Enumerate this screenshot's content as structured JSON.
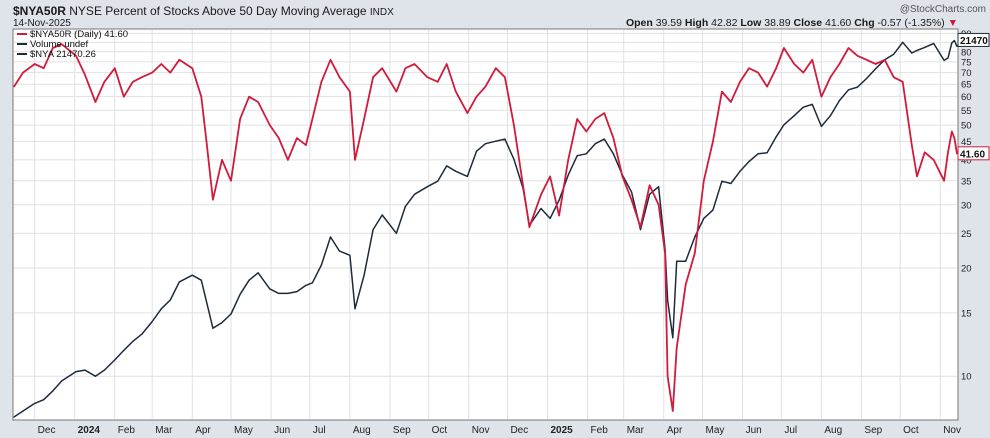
{
  "header": {
    "symbol": "$NYA50R",
    "description": "NYSE Percent of Stocks Above 50 Day Moving Average",
    "exchange": "INDX",
    "date": "14-Nov-2025",
    "watermark": "@StockCharts.com",
    "open_label": "Open",
    "open_value": "39.59",
    "high_label": "High",
    "high_value": "42.82",
    "low_label": "Low",
    "low_value": "38.89",
    "close_label": "Close",
    "close_value": "41.60",
    "chg_label": "Chg",
    "chg_value": "-0.57 (-1.35%)",
    "chg_arrow": "▼"
  },
  "legend": [
    {
      "text": "$NYA50R (Daily) 41.60",
      "color": "#d01c3c"
    },
    {
      "text": "Volume undef",
      "color": "#1e2b3c"
    },
    {
      "text": "$NYA 21470.26",
      "color": "#1e2b3c"
    }
  ],
  "last_labels": {
    "nya": "21470",
    "nya50r": "41.60"
  },
  "colors": {
    "nya50r": "#d01c3c",
    "nya": "#1e2b3c",
    "background": "#ffffff",
    "grid": "#e1e1e1"
  },
  "chart_data": {
    "type": "line",
    "y_scale": "log",
    "grid": true,
    "legend_position": "top-left",
    "y_ticks": [
      10,
      15,
      20,
      25,
      30,
      35,
      40,
      45,
      50,
      55,
      60,
      65,
      70,
      75,
      80,
      85,
      90
    ],
    "x_tick_labels": [
      {
        "label": "Dec",
        "date": "2023-12-01"
      },
      {
        "label": "2024",
        "date": "2024-01-01",
        "bold": true
      },
      {
        "label": "Feb",
        "date": "2024-02-01"
      },
      {
        "label": "Mar",
        "date": "2024-03-01"
      },
      {
        "label": "Apr",
        "date": "2024-04-01"
      },
      {
        "label": "May",
        "date": "2024-05-01"
      },
      {
        "label": "Jun",
        "date": "2024-06-01"
      },
      {
        "label": "Jul",
        "date": "2024-07-01"
      },
      {
        "label": "Aug",
        "date": "2024-08-01"
      },
      {
        "label": "Sep",
        "date": "2024-09-01"
      },
      {
        "label": "Oct",
        "date": "2024-10-01"
      },
      {
        "label": "Nov",
        "date": "2024-11-01"
      },
      {
        "label": "Dec",
        "date": "2024-12-01"
      },
      {
        "label": "2025",
        "date": "2025-01-01",
        "bold": true
      },
      {
        "label": "Feb",
        "date": "2025-02-01"
      },
      {
        "label": "Mar",
        "date": "2025-03-01"
      },
      {
        "label": "Apr",
        "date": "2025-04-01"
      },
      {
        "label": "May",
        "date": "2025-05-01"
      },
      {
        "label": "Jun",
        "date": "2025-06-01"
      },
      {
        "label": "Jul",
        "date": "2025-07-01"
      },
      {
        "label": "Aug",
        "date": "2025-08-01"
      },
      {
        "label": "Sep",
        "date": "2025-09-01"
      },
      {
        "label": "Oct",
        "date": "2025-10-01"
      },
      {
        "label": "Nov",
        "date": "2025-11-01"
      }
    ],
    "x_range": [
      "2023-11-15",
      "2025-11-14"
    ],
    "y_range": [
      7.6,
      92
    ],
    "series": [
      {
        "name": "$NYA50R",
        "points": [
          [
            "2023-11-15",
            64
          ],
          [
            "2023-11-22",
            70
          ],
          [
            "2023-12-01",
            74
          ],
          [
            "2023-12-08",
            72
          ],
          [
            "2023-12-15",
            82
          ],
          [
            "2023-12-22",
            84
          ],
          [
            "2024-01-02",
            78
          ],
          [
            "2024-01-09",
            69
          ],
          [
            "2024-01-17",
            58
          ],
          [
            "2024-01-24",
            66
          ],
          [
            "2024-02-01",
            72
          ],
          [
            "2024-02-08",
            60
          ],
          [
            "2024-02-15",
            66
          ],
          [
            "2024-02-22",
            68
          ],
          [
            "2024-03-01",
            70
          ],
          [
            "2024-03-08",
            74
          ],
          [
            "2024-03-15",
            70
          ],
          [
            "2024-03-22",
            76
          ],
          [
            "2024-04-01",
            72
          ],
          [
            "2024-04-08",
            60
          ],
          [
            "2024-04-12",
            45
          ],
          [
            "2024-04-17",
            31
          ],
          [
            "2024-04-24",
            40
          ],
          [
            "2024-05-01",
            35
          ],
          [
            "2024-05-08",
            52
          ],
          [
            "2024-05-15",
            60
          ],
          [
            "2024-05-22",
            58
          ],
          [
            "2024-05-31",
            50
          ],
          [
            "2024-06-07",
            46
          ],
          [
            "2024-06-14",
            40
          ],
          [
            "2024-06-21",
            46
          ],
          [
            "2024-06-28",
            44
          ],
          [
            "2024-07-03",
            52
          ],
          [
            "2024-07-10",
            66
          ],
          [
            "2024-07-17",
            76
          ],
          [
            "2024-07-24",
            68
          ],
          [
            "2024-08-01",
            62
          ],
          [
            "2024-08-05",
            40
          ],
          [
            "2024-08-12",
            52
          ],
          [
            "2024-08-19",
            68
          ],
          [
            "2024-08-26",
            72
          ],
          [
            "2024-09-06",
            62
          ],
          [
            "2024-09-13",
            72
          ],
          [
            "2024-09-20",
            74
          ],
          [
            "2024-09-30",
            68
          ],
          [
            "2024-10-08",
            66
          ],
          [
            "2024-10-15",
            74
          ],
          [
            "2024-10-22",
            62
          ],
          [
            "2024-10-31",
            54
          ],
          [
            "2024-11-07",
            60
          ],
          [
            "2024-11-14",
            64
          ],
          [
            "2024-11-22",
            72
          ],
          [
            "2024-11-29",
            68
          ],
          [
            "2024-12-06",
            50
          ],
          [
            "2024-12-13",
            34
          ],
          [
            "2024-12-18",
            26
          ],
          [
            "2024-12-27",
            32
          ],
          [
            "2025-01-03",
            36
          ],
          [
            "2025-01-10",
            28
          ],
          [
            "2025-01-17",
            40
          ],
          [
            "2025-01-24",
            52
          ],
          [
            "2025-01-31",
            48
          ],
          [
            "2025-02-07",
            52
          ],
          [
            "2025-02-14",
            54
          ],
          [
            "2025-02-21",
            46
          ],
          [
            "2025-02-28",
            36
          ],
          [
            "2025-03-07",
            31
          ],
          [
            "2025-03-14",
            26
          ],
          [
            "2025-03-21",
            34
          ],
          [
            "2025-03-28",
            30
          ],
          [
            "2025-04-02",
            22
          ],
          [
            "2025-04-04",
            10
          ],
          [
            "2025-04-08",
            8
          ],
          [
            "2025-04-11",
            12
          ],
          [
            "2025-04-18",
            18
          ],
          [
            "2025-04-25",
            22
          ],
          [
            "2025-05-02",
            35
          ],
          [
            "2025-05-09",
            45
          ],
          [
            "2025-05-16",
            62
          ],
          [
            "2025-05-23",
            58
          ],
          [
            "2025-05-30",
            66
          ],
          [
            "2025-06-06",
            72
          ],
          [
            "2025-06-13",
            70
          ],
          [
            "2025-06-20",
            64
          ],
          [
            "2025-06-27",
            72
          ],
          [
            "2025-07-03",
            82
          ],
          [
            "2025-07-11",
            74
          ],
          [
            "2025-07-18",
            70
          ],
          [
            "2025-07-25",
            76
          ],
          [
            "2025-08-01",
            60
          ],
          [
            "2025-08-08",
            68
          ],
          [
            "2025-08-15",
            74
          ],
          [
            "2025-08-22",
            82
          ],
          [
            "2025-08-29",
            78
          ],
          [
            "2025-09-05",
            76
          ],
          [
            "2025-09-12",
            74
          ],
          [
            "2025-09-19",
            76
          ],
          [
            "2025-09-26",
            68
          ],
          [
            "2025-10-03",
            66
          ],
          [
            "2025-10-10",
            44
          ],
          [
            "2025-10-14",
            36
          ],
          [
            "2025-10-20",
            42
          ],
          [
            "2025-10-27",
            40
          ],
          [
            "2025-11-04",
            35
          ],
          [
            "2025-11-07",
            42
          ],
          [
            "2025-11-10",
            48
          ],
          [
            "2025-11-12",
            46
          ],
          [
            "2025-11-14",
            41.6
          ]
        ]
      },
      {
        "name": "$NYA",
        "points": [
          [
            "2023-11-15",
            7.7
          ],
          [
            "2023-11-22",
            8.0
          ],
          [
            "2023-12-01",
            8.4
          ],
          [
            "2023-12-08",
            8.6
          ],
          [
            "2023-12-15",
            9.1
          ],
          [
            "2023-12-22",
            9.7
          ],
          [
            "2024-01-02",
            10.3
          ],
          [
            "2024-01-09",
            10.4
          ],
          [
            "2024-01-17",
            10.0
          ],
          [
            "2024-01-24",
            10.4
          ],
          [
            "2024-02-01",
            11.1
          ],
          [
            "2024-02-08",
            11.8
          ],
          [
            "2024-02-15",
            12.5
          ],
          [
            "2024-02-22",
            13.1
          ],
          [
            "2024-03-01",
            14.2
          ],
          [
            "2024-03-08",
            15.4
          ],
          [
            "2024-03-15",
            16.3
          ],
          [
            "2024-03-22",
            18.3
          ],
          [
            "2024-04-01",
            19.1
          ],
          [
            "2024-04-08",
            18.5
          ],
          [
            "2024-04-17",
            13.6
          ],
          [
            "2024-04-24",
            14.1
          ],
          [
            "2024-05-01",
            14.9
          ],
          [
            "2024-05-08",
            16.9
          ],
          [
            "2024-05-15",
            18.5
          ],
          [
            "2024-05-22",
            19.4
          ],
          [
            "2024-05-31",
            17.5
          ],
          [
            "2024-06-07",
            17.0
          ],
          [
            "2024-06-14",
            17.0
          ],
          [
            "2024-06-21",
            17.2
          ],
          [
            "2024-06-28",
            17.9
          ],
          [
            "2024-07-03",
            18.2
          ],
          [
            "2024-07-10",
            20.4
          ],
          [
            "2024-07-17",
            24.4
          ],
          [
            "2024-07-24",
            22.3
          ],
          [
            "2024-08-01",
            21.7
          ],
          [
            "2024-08-05",
            15.4
          ],
          [
            "2024-08-12",
            19.1
          ],
          [
            "2024-08-19",
            25.6
          ],
          [
            "2024-08-26",
            28.1
          ],
          [
            "2024-09-06",
            25.0
          ],
          [
            "2024-09-13",
            29.7
          ],
          [
            "2024-09-20",
            32.1
          ],
          [
            "2024-09-30",
            33.7
          ],
          [
            "2024-10-08",
            34.9
          ],
          [
            "2024-10-15",
            38.5
          ],
          [
            "2024-10-22",
            37.2
          ],
          [
            "2024-10-31",
            36.0
          ],
          [
            "2024-11-07",
            42.3
          ],
          [
            "2024-11-14",
            44.4
          ],
          [
            "2024-11-22",
            45.1
          ],
          [
            "2024-11-29",
            45.7
          ],
          [
            "2024-12-06",
            40.2
          ],
          [
            "2024-12-13",
            33.4
          ],
          [
            "2024-12-18",
            26.3
          ],
          [
            "2024-12-27",
            29.3
          ],
          [
            "2025-01-03",
            27.5
          ],
          [
            "2025-01-10",
            30.9
          ],
          [
            "2025-01-17",
            36.3
          ],
          [
            "2025-01-24",
            41.1
          ],
          [
            "2025-01-31",
            41.6
          ],
          [
            "2025-02-07",
            44.4
          ],
          [
            "2025-02-14",
            45.7
          ],
          [
            "2025-02-21",
            41.6
          ],
          [
            "2025-02-28",
            36.3
          ],
          [
            "2025-03-07",
            32.6
          ],
          [
            "2025-03-14",
            25.6
          ],
          [
            "2025-03-21",
            32.1
          ],
          [
            "2025-03-28",
            33.7
          ],
          [
            "2025-04-02",
            22.5
          ],
          [
            "2025-04-04",
            16.3
          ],
          [
            "2025-04-08",
            12.8
          ],
          [
            "2025-04-11",
            20.9
          ],
          [
            "2025-04-18",
            20.9
          ],
          [
            "2025-04-25",
            24.4
          ],
          [
            "2025-05-02",
            27.5
          ],
          [
            "2025-05-09",
            29.0
          ],
          [
            "2025-05-16",
            34.9
          ],
          [
            "2025-05-23",
            34.4
          ],
          [
            "2025-05-30",
            37.2
          ],
          [
            "2025-06-06",
            39.6
          ],
          [
            "2025-06-13",
            41.6
          ],
          [
            "2025-06-20",
            41.9
          ],
          [
            "2025-06-27",
            46.4
          ],
          [
            "2025-07-03",
            50.1
          ],
          [
            "2025-07-11",
            53.1
          ],
          [
            "2025-07-18",
            56.1
          ],
          [
            "2025-07-25",
            57.1
          ],
          [
            "2025-08-01",
            49.6
          ],
          [
            "2025-08-08",
            53.1
          ],
          [
            "2025-08-15",
            58.5
          ],
          [
            "2025-08-22",
            62.7
          ],
          [
            "2025-08-29",
            63.8
          ],
          [
            "2025-09-05",
            67.4
          ],
          [
            "2025-09-12",
            71.8
          ],
          [
            "2025-09-19",
            76.0
          ],
          [
            "2025-09-26",
            78.8
          ],
          [
            "2025-10-03",
            85.0
          ],
          [
            "2025-10-10",
            79.4
          ],
          [
            "2025-10-14",
            80.7
          ],
          [
            "2025-10-20",
            82.3
          ],
          [
            "2025-10-27",
            84.4
          ],
          [
            "2025-11-04",
            75.7
          ],
          [
            "2025-11-07",
            76.9
          ],
          [
            "2025-11-10",
            84.7
          ],
          [
            "2025-11-12",
            86.0
          ],
          [
            "2025-11-14",
            82.8
          ]
        ]
      }
    ]
  }
}
